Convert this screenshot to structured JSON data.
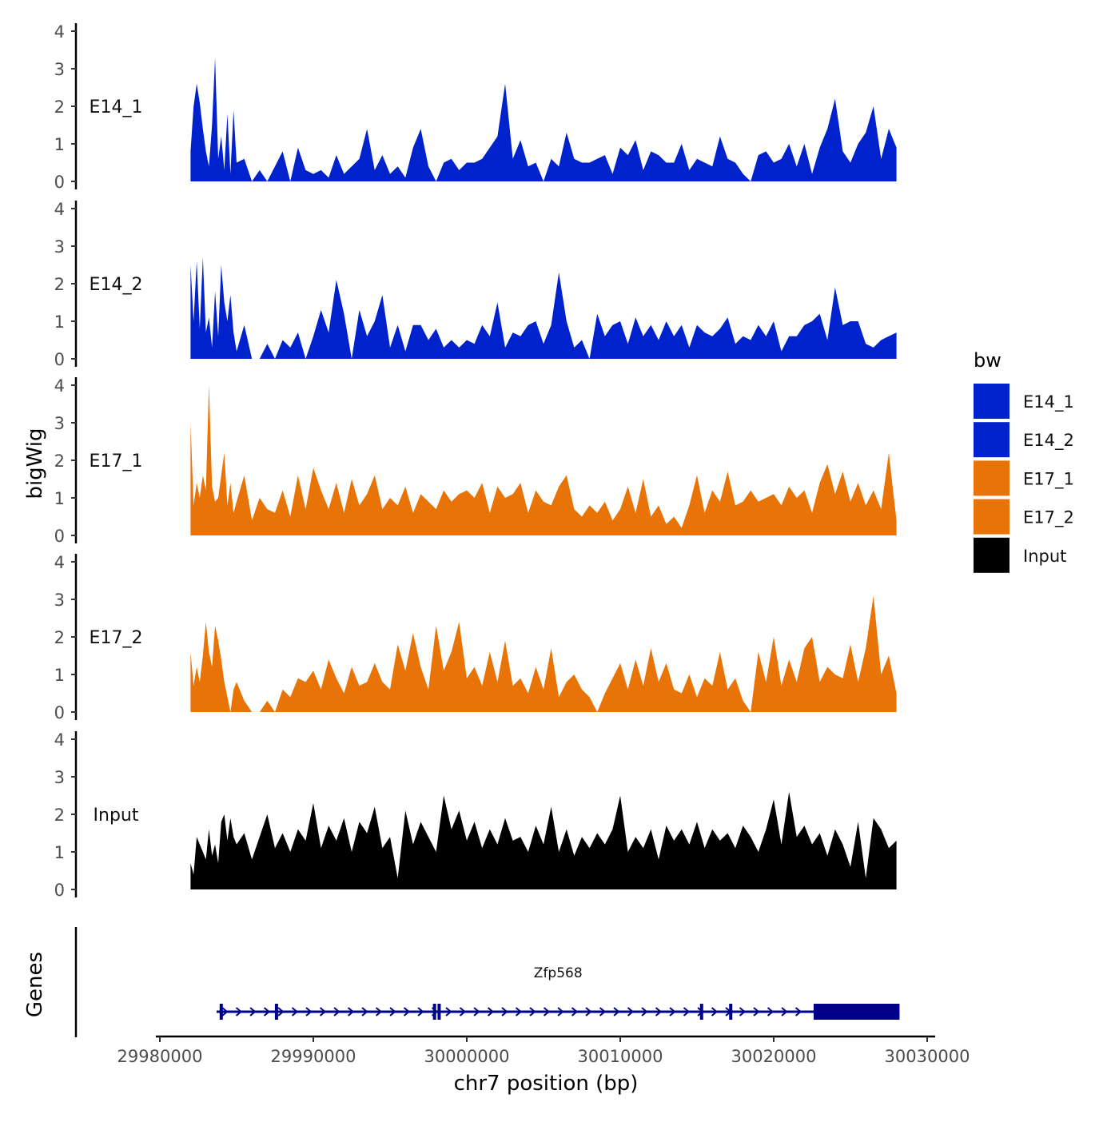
{
  "chart_data": {
    "type": "area",
    "chromosome": "chr7",
    "xlabel": "chr7 position (bp)",
    "ylabel": "bigWig",
    "genes_label": "Genes",
    "xlim": [
      29980000,
      30030000
    ],
    "x_ticks": [
      29980000,
      29990000,
      30000000,
      30010000,
      30020000,
      30030000
    ],
    "x_tick_labels": [
      "29980000",
      "29990000",
      "30000000",
      "30010000",
      "30020000",
      "30030000"
    ],
    "ylim": [
      0,
      4
    ],
    "y_ticks": [
      0,
      1,
      2,
      3,
      4
    ],
    "y_tick_labels": [
      "0",
      "1",
      "2",
      "3",
      "4"
    ],
    "legend": {
      "title": "bw",
      "position": "right",
      "entries": [
        {
          "label": "E14_1",
          "color": "#0022CC"
        },
        {
          "label": "E14_2",
          "color": "#0022CC"
        },
        {
          "label": "E17_1",
          "color": "#E87306"
        },
        {
          "label": "E17_2",
          "color": "#E87306"
        },
        {
          "label": "Input",
          "color": "#000000"
        }
      ]
    },
    "series": [
      {
        "name": "E14_1",
        "color": "#0022CC",
        "x": [
          29982000,
          29982200,
          29982400,
          29982600,
          29982800,
          29983000,
          29983200,
          29983400,
          29983600,
          29983800,
          29984000,
          29984200,
          29984400,
          29984600,
          29984800,
          29985000,
          29985500,
          29986000,
          29986500,
          29987000,
          29987500,
          29988000,
          29988500,
          29989000,
          29989500,
          29990000,
          29990500,
          29991000,
          29991500,
          29992000,
          29992500,
          29993000,
          29993500,
          29994000,
          29994500,
          29995000,
          29995500,
          29996000,
          29996500,
          29997000,
          29997500,
          29998000,
          29998500,
          29999000,
          29999500,
          30000000,
          30000500,
          30001000,
          30001500,
          30002000,
          30002500,
          30003000,
          30003500,
          30004000,
          30004500,
          30005000,
          30005500,
          30006000,
          30006500,
          30007000,
          30007500,
          30008000,
          30008500,
          30009000,
          30009500,
          30010000,
          30010500,
          30011000,
          30011500,
          30012000,
          30012500,
          30013000,
          30013500,
          30014000,
          30014500,
          30015000,
          30015500,
          30016000,
          30016500,
          30017000,
          30017500,
          30018000,
          30018500,
          30019000,
          30019500,
          30020000,
          30020500,
          30021000,
          30021500,
          30022000,
          30022500,
          30023000,
          30023500,
          30024000,
          30024500,
          30025000,
          30025500,
          30026000,
          30026500,
          30027000,
          30027500,
          30028000
        ],
        "y": [
          0.8,
          2.0,
          2.6,
          2.1,
          1.4,
          0.8,
          0.4,
          1.5,
          3.3,
          0.6,
          1.2,
          0.3,
          1.8,
          0.2,
          1.9,
          0.5,
          0.6,
          0.0,
          0.3,
          0.0,
          0.4,
          0.8,
          0.0,
          0.9,
          0.3,
          0.2,
          0.3,
          0.1,
          0.7,
          0.2,
          0.4,
          0.6,
          1.4,
          0.3,
          0.7,
          0.2,
          0.4,
          0.1,
          0.9,
          1.4,
          0.4,
          0.0,
          0.5,
          0.6,
          0.3,
          0.5,
          0.5,
          0.6,
          0.9,
          1.2,
          2.6,
          0.6,
          1.1,
          0.4,
          0.5,
          0.0,
          0.6,
          0.4,
          1.3,
          0.6,
          0.5,
          0.5,
          0.6,
          0.7,
          0.2,
          0.9,
          0.7,
          1.1,
          0.3,
          0.8,
          0.7,
          0.5,
          0.5,
          1.0,
          0.3,
          0.6,
          0.5,
          0.4,
          1.2,
          0.6,
          0.5,
          0.2,
          0.0,
          0.7,
          0.8,
          0.5,
          0.6,
          1.0,
          0.4,
          1.0,
          0.2,
          0.9,
          1.4,
          2.2,
          0.8,
          0.5,
          1.0,
          1.3,
          2.0,
          0.6,
          1.4,
          0.9
        ]
      },
      {
        "name": "E14_2",
        "color": "#0022CC",
        "x": [
          29982000,
          29982200,
          29982400,
          29982600,
          29982800,
          29983000,
          29983200,
          29983400,
          29983600,
          29983800,
          29984000,
          29984200,
          29984400,
          29984600,
          29984800,
          29985000,
          29985500,
          29986000,
          29986500,
          29987000,
          29987500,
          29988000,
          29988500,
          29989000,
          29989500,
          29990000,
          29990500,
          29991000,
          29991500,
          29992000,
          29992500,
          29993000,
          29993500,
          29994000,
          29994500,
          29995000,
          29995500,
          29996000,
          29996500,
          29997000,
          29997500,
          29998000,
          29998500,
          29999000,
          29999500,
          30000000,
          30000500,
          30001000,
          30001500,
          30002000,
          30002500,
          30003000,
          30003500,
          30004000,
          30004500,
          30005000,
          30005500,
          30006000,
          30006500,
          30007000,
          30007500,
          30008000,
          30008500,
          30009000,
          30009500,
          30010000,
          30010500,
          30011000,
          30011500,
          30012000,
          30012500,
          30013000,
          30013500,
          30014000,
          30014500,
          30015000,
          30015500,
          30016000,
          30016500,
          30017000,
          30017500,
          30018000,
          30018500,
          30019000,
          30019500,
          30020000,
          30020500,
          30021000,
          30021500,
          30022000,
          30022500,
          30023000,
          30023500,
          30024000,
          30024500,
          30025000,
          30025500,
          30026000,
          30026500,
          30027000,
          30027500,
          30028000
        ],
        "y": [
          2.5,
          1.0,
          2.6,
          0.8,
          2.7,
          0.7,
          1.1,
          0.3,
          1.8,
          0.6,
          2.5,
          1.5,
          1.0,
          1.7,
          0.7,
          0.2,
          0.9,
          0.0,
          0.0,
          0.4,
          0.0,
          0.5,
          0.3,
          0.7,
          0.0,
          0.6,
          1.3,
          0.7,
          2.1,
          1.2,
          0.0,
          1.3,
          0.6,
          1.0,
          1.7,
          0.3,
          0.9,
          0.2,
          0.9,
          0.9,
          0.5,
          0.8,
          0.3,
          0.5,
          0.3,
          0.5,
          0.4,
          0.9,
          0.6,
          1.5,
          0.3,
          0.7,
          0.6,
          0.9,
          1.0,
          0.4,
          0.9,
          2.3,
          1.0,
          0.3,
          0.5,
          0.0,
          1.2,
          0.6,
          0.9,
          1.0,
          0.4,
          1.1,
          0.6,
          0.9,
          0.5,
          1.0,
          0.6,
          0.9,
          0.3,
          0.9,
          0.7,
          0.6,
          0.8,
          1.1,
          0.4,
          0.6,
          0.5,
          0.9,
          0.6,
          1.0,
          0.2,
          0.6,
          0.6,
          0.9,
          1.0,
          1.2,
          0.5,
          1.9,
          0.9,
          1.0,
          1.0,
          0.4,
          0.3,
          0.5,
          0.6,
          0.7
        ]
      },
      {
        "name": "E17_1",
        "color": "#E87306",
        "x": [
          29982000,
          29982200,
          29982400,
          29982600,
          29982800,
          29983000,
          29983200,
          29983400,
          29983600,
          29983800,
          29984000,
          29984200,
          29984400,
          29984600,
          29984800,
          29985000,
          29985500,
          29986000,
          29986500,
          29987000,
          29987500,
          29988000,
          29988500,
          29989000,
          29989500,
          29990000,
          29990500,
          29991000,
          29991500,
          29992000,
          29992500,
          29993000,
          29993500,
          29994000,
          29994500,
          29995000,
          29995500,
          29996000,
          29996500,
          29997000,
          29997500,
          29998000,
          29998500,
          29999000,
          29999500,
          30000000,
          30000500,
          30001000,
          30001500,
          30002000,
          30002500,
          30003000,
          30003500,
          30004000,
          30004500,
          30005000,
          30005500,
          30006000,
          30006500,
          30007000,
          30007500,
          30008000,
          30008500,
          30009000,
          30009500,
          30010000,
          30010500,
          30011000,
          30011500,
          30012000,
          30012500,
          30013000,
          30013500,
          30014000,
          30014500,
          30015000,
          30015500,
          30016000,
          30016500,
          30017000,
          30017500,
          30018000,
          30018500,
          30019000,
          30019500,
          30020000,
          30020500,
          30021000,
          30021500,
          30022000,
          30022500,
          30023000,
          30023500,
          30024000,
          30024500,
          30025000,
          30025500,
          30026000,
          30026500,
          30027000,
          30027500,
          30028000
        ],
        "y": [
          3.0,
          0.8,
          1.4,
          1.0,
          1.6,
          1.2,
          4.0,
          1.3,
          0.9,
          1.0,
          1.6,
          2.2,
          0.8,
          1.4,
          0.6,
          0.9,
          1.6,
          0.4,
          1.0,
          0.7,
          0.6,
          1.2,
          0.5,
          1.6,
          0.7,
          1.8,
          1.2,
          0.7,
          1.4,
          0.6,
          1.5,
          0.8,
          1.1,
          1.6,
          0.7,
          1.0,
          0.8,
          1.3,
          0.6,
          1.1,
          0.9,
          0.7,
          1.2,
          0.9,
          1.1,
          1.2,
          1.0,
          1.4,
          0.6,
          1.3,
          1.0,
          1.1,
          1.4,
          0.6,
          1.2,
          0.9,
          0.8,
          1.3,
          1.6,
          0.7,
          0.5,
          0.8,
          0.6,
          0.9,
          0.4,
          0.7,
          1.3,
          0.6,
          1.5,
          0.5,
          0.8,
          0.3,
          0.5,
          0.2,
          0.8,
          1.6,
          0.6,
          1.2,
          0.9,
          1.7,
          0.8,
          0.9,
          1.2,
          0.9,
          1.0,
          1.1,
          0.8,
          1.3,
          1.0,
          1.2,
          0.6,
          1.4,
          1.9,
          1.1,
          1.7,
          0.9,
          1.4,
          0.8,
          1.2,
          0.7,
          2.2,
          0.4
        ]
      },
      {
        "name": "E17_2",
        "color": "#E87306",
        "x": [
          29982000,
          29982200,
          29982400,
          29982600,
          29982800,
          29983000,
          29983200,
          29983400,
          29983600,
          29983800,
          29984000,
          29984200,
          29984400,
          29984600,
          29984800,
          29985000,
          29985500,
          29986000,
          29986500,
          29987000,
          29987500,
          29988000,
          29988500,
          29989000,
          29989500,
          29990000,
          29990500,
          29991000,
          29991500,
          29992000,
          29992500,
          29993000,
          29993500,
          29994000,
          29994500,
          29995000,
          29995500,
          29996000,
          29996500,
          29997000,
          29997500,
          29998000,
          29998500,
          29999000,
          29999500,
          30000000,
          30000500,
          30001000,
          30001500,
          30002000,
          30002500,
          30003000,
          30003500,
          30004000,
          30004500,
          30005000,
          30005500,
          30006000,
          30006500,
          30007000,
          30007500,
          30008000,
          30008500,
          30009000,
          30009500,
          30010000,
          30010500,
          30011000,
          30011500,
          30012000,
          30012500,
          30013000,
          30013500,
          30014000,
          30014500,
          30015000,
          30015500,
          30016000,
          30016500,
          30017000,
          30017500,
          30018000,
          30018500,
          30019000,
          30019500,
          30020000,
          30020500,
          30021000,
          30021500,
          30022000,
          30022500,
          30023000,
          30023500,
          30024000,
          30024500,
          30025000,
          30025500,
          30026000,
          30026500,
          30027000,
          30027500,
          30028000
        ],
        "y": [
          1.6,
          0.7,
          1.2,
          0.8,
          1.5,
          2.4,
          1.6,
          1.2,
          2.3,
          1.9,
          1.4,
          0.8,
          0.4,
          0.0,
          0.6,
          0.8,
          0.3,
          0.0,
          0.0,
          0.3,
          0.0,
          0.6,
          0.4,
          0.9,
          0.8,
          1.1,
          0.6,
          1.4,
          0.9,
          0.5,
          1.2,
          0.7,
          0.8,
          1.3,
          0.8,
          0.6,
          1.8,
          1.1,
          2.1,
          1.2,
          0.6,
          2.3,
          1.1,
          1.6,
          2.4,
          0.9,
          1.2,
          0.7,
          1.6,
          0.8,
          1.9,
          0.7,
          0.9,
          0.5,
          1.2,
          0.6,
          1.7,
          0.4,
          0.8,
          1.0,
          0.6,
          0.4,
          0.0,
          0.5,
          0.9,
          1.3,
          0.6,
          1.4,
          0.7,
          1.7,
          0.8,
          1.3,
          0.6,
          0.5,
          1.0,
          0.4,
          0.9,
          0.7,
          1.6,
          0.6,
          0.9,
          0.3,
          0.0,
          1.6,
          0.8,
          2.0,
          0.7,
          1.4,
          0.8,
          1.7,
          2.0,
          0.8,
          1.2,
          1.0,
          0.9,
          1.8,
          0.8,
          1.7,
          3.1,
          1.0,
          1.5,
          0.5
        ]
      },
      {
        "name": "Input",
        "color": "#000000",
        "x": [
          29982000,
          29982200,
          29982400,
          29982600,
          29982800,
          29983000,
          29983200,
          29983400,
          29983600,
          29983800,
          29984000,
          29984200,
          29984400,
          29984600,
          29984800,
          29985000,
          29985500,
          29986000,
          29986500,
          29987000,
          29987500,
          29988000,
          29988500,
          29989000,
          29989500,
          29990000,
          29990500,
          29991000,
          29991500,
          29992000,
          29992500,
          29993000,
          29993500,
          29994000,
          29994500,
          29995000,
          29995500,
          29996000,
          29996500,
          29997000,
          29997500,
          29998000,
          29998500,
          29999000,
          29999500,
          30000000,
          30000500,
          30001000,
          30001500,
          30002000,
          30002500,
          30003000,
          30003500,
          30004000,
          30004500,
          30005000,
          30005500,
          30006000,
          30006500,
          30007000,
          30007500,
          30008000,
          30008500,
          30009000,
          30009500,
          30010000,
          30010500,
          30011000,
          30011500,
          30012000,
          30012500,
          30013000,
          30013500,
          30014000,
          30014500,
          30015000,
          30015500,
          30016000,
          30016500,
          30017000,
          30017500,
          30018000,
          30018500,
          30019000,
          30019500,
          30020000,
          30020500,
          30021000,
          30021500,
          30022000,
          30022500,
          30023000,
          30023500,
          30024000,
          30024500,
          30025000,
          30025500,
          30026000,
          30026500,
          30027000,
          30027500,
          30028000
        ],
        "y": [
          0.7,
          0.4,
          1.4,
          1.2,
          1.0,
          0.8,
          1.6,
          0.9,
          1.2,
          0.7,
          1.8,
          2.0,
          1.3,
          1.9,
          1.4,
          1.2,
          1.5,
          0.8,
          1.4,
          2.0,
          1.1,
          1.5,
          1.0,
          1.6,
          1.3,
          2.3,
          1.1,
          1.7,
          1.3,
          1.9,
          1.0,
          1.8,
          1.5,
          2.2,
          1.1,
          1.4,
          0.3,
          2.1,
          1.2,
          1.8,
          1.4,
          1.0,
          2.5,
          1.6,
          2.1,
          1.3,
          1.8,
          1.1,
          1.6,
          1.2,
          1.9,
          1.3,
          1.4,
          1.0,
          1.7,
          1.2,
          2.2,
          1.0,
          1.6,
          0.9,
          1.4,
          1.1,
          1.5,
          1.2,
          1.6,
          2.5,
          1.0,
          1.4,
          1.1,
          1.6,
          0.8,
          1.7,
          1.3,
          1.6,
          1.2,
          1.8,
          1.1,
          1.6,
          1.3,
          1.5,
          1.1,
          1.7,
          1.4,
          1.0,
          1.6,
          2.4,
          1.2,
          2.6,
          1.4,
          1.7,
          1.2,
          1.5,
          0.9,
          1.6,
          1.2,
          0.6,
          1.8,
          0.3,
          1.9,
          1.6,
          1.1,
          1.3
        ]
      }
    ],
    "gene": {
      "name": "Zfp568",
      "strand": "+",
      "start": 29983700,
      "end": 30028200,
      "thick_start": 30022600,
      "thick_end": 30028200,
      "color": "#00008B",
      "exons": [
        29984000,
        29987600,
        29997900,
        29998200,
        30015300,
        30017200
      ]
    }
  }
}
